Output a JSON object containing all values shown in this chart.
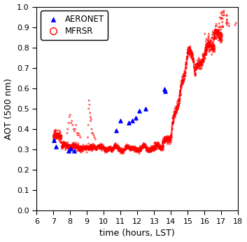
{
  "title": "",
  "xlabel": "time (hours, LST)",
  "ylabel": "AOT (500 nm)",
  "xlim": [
    6,
    18
  ],
  "ylim": [
    0,
    1.0
  ],
  "xticks": [
    6,
    7,
    8,
    9,
    10,
    11,
    12,
    13,
    14,
    15,
    16,
    17,
    18
  ],
  "yticks": [
    0,
    0.1,
    0.2,
    0.3,
    0.4,
    0.5,
    0.6,
    0.7,
    0.8,
    0.9,
    1
  ],
  "mfrsr_color": "#ff0000",
  "aeronet_color": "#0000ff",
  "aeronet_x": [
    7.05,
    7.15,
    7.9,
    8.05,
    8.25,
    10.75,
    11.0,
    11.5,
    11.7,
    11.9,
    12.1,
    12.5,
    13.6,
    13.65
  ],
  "aeronet_y": [
    0.345,
    0.315,
    0.295,
    0.305,
    0.295,
    0.395,
    0.44,
    0.43,
    0.44,
    0.455,
    0.49,
    0.5,
    0.595,
    0.585
  ],
  "legend_labels": [
    "AERONET",
    "MFRSR"
  ],
  "figsize": [
    3.53,
    3.45
  ],
  "dpi": 100
}
